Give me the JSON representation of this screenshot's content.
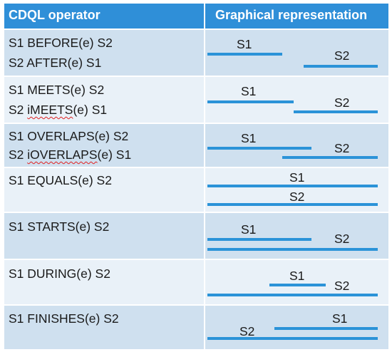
{
  "header": {
    "operator_label": "CDQL operator",
    "graphical_label": "Graphical representation"
  },
  "rows": [
    {
      "lines": [
        "S1 BEFORE(e) S2",
        "S2 AFTER(e) S1"
      ],
      "s1_label": "S1",
      "s2_label": "S2"
    },
    {
      "lines": [
        "S1 MEETS(e) S2",
        "S2 iMEETS(e) S1"
      ],
      "s1_label": "S1",
      "s2_label": "S2"
    },
    {
      "lines": [
        "S1 OVERLAPS(e) S2",
        "S2 iOVERLAPS(e) S1"
      ],
      "s1_label": "S1",
      "s2_label": "S2"
    },
    {
      "lines": [
        "S1 EQUALS(e) S2"
      ],
      "s1_label": "S1",
      "s2_label": "S2"
    },
    {
      "lines": [
        "S1 STARTS(e) S2"
      ],
      "s1_label": "S1",
      "s2_label": "S2"
    },
    {
      "lines": [
        "S1 DURING(e) S2"
      ],
      "s1_label": "S1",
      "s2_label": "S2"
    },
    {
      "lines": [
        "S1 FINISHES(e) S2"
      ],
      "s1_label": "S1",
      "s2_label": "S2"
    }
  ],
  "colors": {
    "header_bg": "#2f8fd8",
    "row_dark": "#cfe0ef",
    "row_light": "#e9f1f8",
    "bar": "#2b93d8"
  }
}
